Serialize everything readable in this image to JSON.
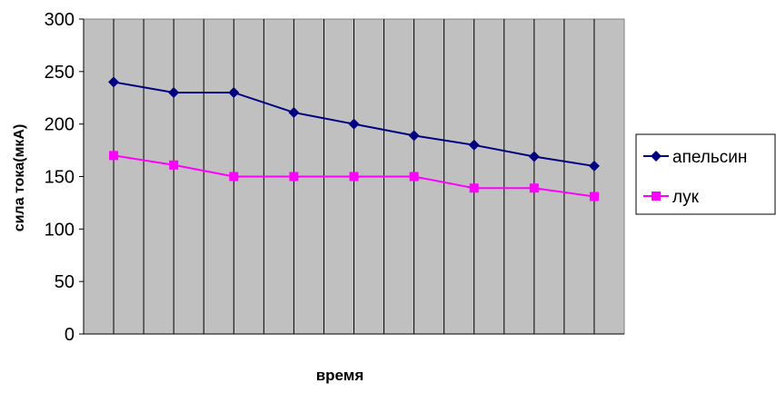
{
  "chart_data": {
    "type": "line",
    "xlabel": "время",
    "ylabel": "сила тока(мкА)",
    "ylim": [
      0,
      300
    ],
    "yticks": [
      0,
      50,
      100,
      150,
      200,
      250,
      300
    ],
    "x": [
      1,
      2,
      3,
      4,
      5,
      6,
      7,
      8,
      9
    ],
    "grid": "vertical",
    "legend_position": "right",
    "plot_background": "#c0c0c0",
    "series": [
      {
        "name": "апельсин",
        "values": [
          240,
          230,
          230,
          211,
          200,
          189,
          180,
          169,
          160
        ],
        "color": "#000080",
        "marker": "diamond"
      },
      {
        "name": "лук",
        "values": [
          170,
          161,
          150,
          150,
          150,
          150,
          139,
          139,
          131
        ],
        "color": "#ff00ff",
        "marker": "square"
      }
    ]
  }
}
